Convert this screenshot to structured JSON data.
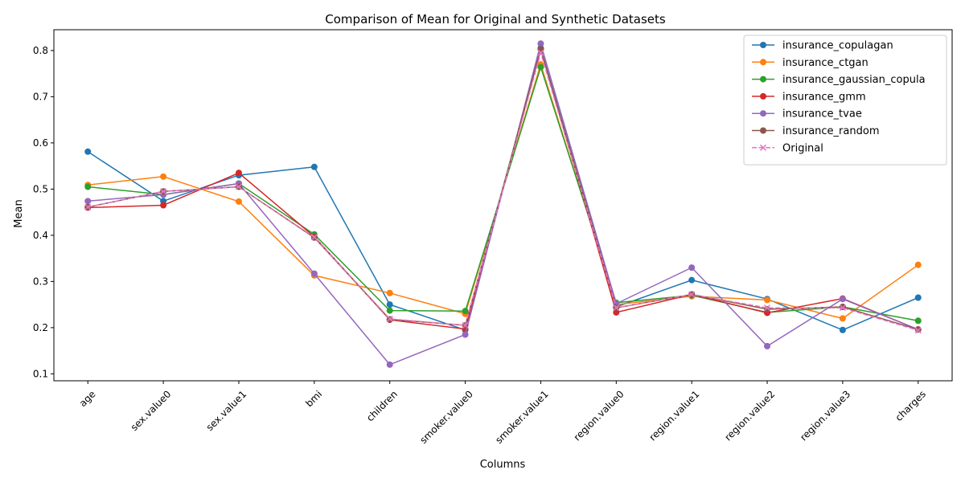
{
  "chart_data": {
    "type": "line",
    "title": "Comparison of Mean for Original and Synthetic Datasets",
    "xlabel": "Columns",
    "ylabel": "Mean",
    "ylim": [
      0.085,
      0.845
    ],
    "yticks": [
      0.1,
      0.2,
      0.3,
      0.4,
      0.5,
      0.6,
      0.7,
      0.8
    ],
    "ytick_labels": [
      "0.1",
      "0.2",
      "0.3",
      "0.4",
      "0.5",
      "0.6",
      "0.7",
      "0.8"
    ],
    "grid": false,
    "legend_position": "top-right",
    "categories": [
      "age",
      "sex.value0",
      "sex.value1",
      "bmi",
      "children",
      "smoker.value0",
      "smoker.value1",
      "region.value0",
      "region.value1",
      "region.value2",
      "region.value3",
      "charges"
    ],
    "series": [
      {
        "name": "insurance_copulagan",
        "color": "#1f77b4",
        "marker": "circle",
        "dashed": false,
        "values": [
          0.581,
          0.474,
          0.53,
          0.548,
          0.25,
          0.195,
          0.805,
          0.245,
          0.303,
          0.262,
          0.195,
          0.265
        ]
      },
      {
        "name": "insurance_ctgan",
        "color": "#ff7f0e",
        "marker": "circle",
        "dashed": false,
        "values": [
          0.509,
          0.527,
          0.473,
          0.313,
          0.275,
          0.23,
          0.77,
          0.25,
          0.268,
          0.26,
          0.22,
          0.336
        ]
      },
      {
        "name": "insurance_gaussian_copula",
        "color": "#2ca02c",
        "marker": "circle",
        "dashed": false,
        "values": [
          0.505,
          0.488,
          0.512,
          0.402,
          0.237,
          0.236,
          0.764,
          0.254,
          0.27,
          0.233,
          0.245,
          0.215
        ]
      },
      {
        "name": "insurance_gmm",
        "color": "#d62728",
        "marker": "circle",
        "dashed": false,
        "values": [
          0.46,
          0.465,
          0.535,
          0.397,
          0.217,
          0.197,
          0.803,
          0.233,
          0.272,
          0.232,
          0.263,
          0.196
        ]
      },
      {
        "name": "insurance_tvae",
        "color": "#9467bd",
        "marker": "circle",
        "dashed": false,
        "values": [
          0.474,
          0.488,
          0.512,
          0.317,
          0.12,
          0.185,
          0.815,
          0.252,
          0.33,
          0.16,
          0.262,
          0.196
        ]
      },
      {
        "name": "insurance_random",
        "color": "#8c564b",
        "marker": "circle",
        "dashed": false,
        "values": [
          0.461,
          0.495,
          0.505,
          0.395,
          0.218,
          0.205,
          0.803,
          0.243,
          0.272,
          0.24,
          0.245,
          0.196
        ]
      },
      {
        "name": "Original",
        "color": "#e377c2",
        "marker": "x",
        "dashed": true,
        "values": [
          0.461,
          0.495,
          0.505,
          0.396,
          0.219,
          0.205,
          0.795,
          0.243,
          0.272,
          0.243,
          0.243,
          0.194
        ]
      }
    ]
  }
}
